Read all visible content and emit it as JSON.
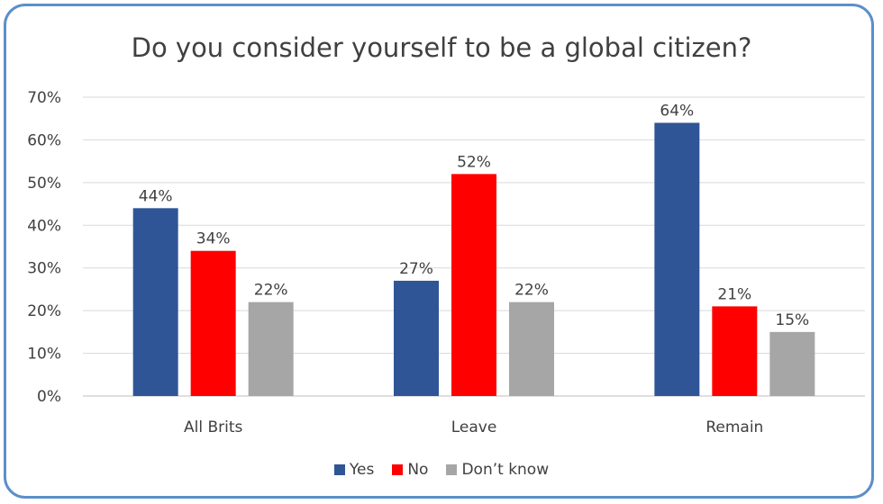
{
  "chart_data": {
    "type": "bar",
    "title": "Do you consider yourself to be a global citizen?",
    "categories": [
      "All Brits",
      "Leave",
      "Remain"
    ],
    "series": [
      {
        "name": "Yes",
        "color": "#2f5597",
        "values": [
          44,
          27,
          64
        ]
      },
      {
        "name": "No",
        "color": "#ff0000",
        "values": [
          34,
          52,
          21
        ]
      },
      {
        "name": "Don’t know",
        "color": "#a6a6a6",
        "values": [
          22,
          22,
          15
        ]
      }
    ],
    "ylim": [
      0,
      70
    ],
    "yticks": [
      "0%",
      "10%",
      "20%",
      "30%",
      "40%",
      "50%",
      "60%",
      "70%"
    ],
    "value_suffix": "%",
    "grid": true,
    "legend_position": "bottom"
  }
}
